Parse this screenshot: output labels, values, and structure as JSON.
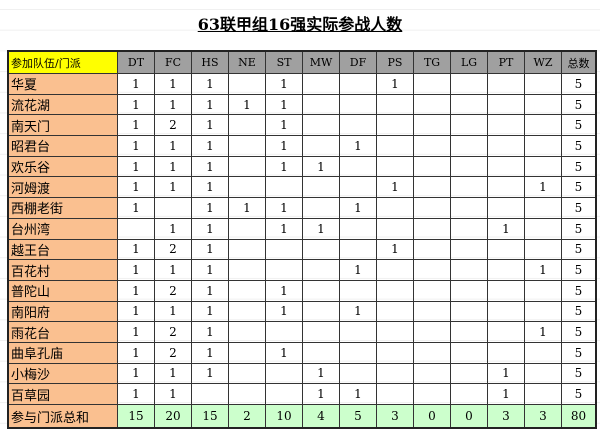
{
  "title": "63联甲组16强实际参战人数",
  "header": {
    "label": "参加队伍/门派",
    "columns": [
      "DT",
      "FC",
      "HS",
      "NE",
      "ST",
      "MW",
      "DF",
      "PS",
      "TG",
      "LG",
      "PT",
      "WZ"
    ],
    "total": "总数"
  },
  "rows": [
    {
      "name": "华夏",
      "values": [
        "1",
        "1",
        "1",
        "",
        "1",
        "",
        "",
        "1",
        "",
        "",
        "",
        ""
      ],
      "total": "5"
    },
    {
      "name": "流花湖",
      "values": [
        "1",
        "1",
        "1",
        "1",
        "1",
        "",
        "",
        "",
        "",
        "",
        "",
        ""
      ],
      "total": "5"
    },
    {
      "name": "南天门",
      "values": [
        "1",
        "2",
        "1",
        "",
        "1",
        "",
        "",
        "",
        "",
        "",
        "",
        ""
      ],
      "total": "5"
    },
    {
      "name": "昭君台",
      "values": [
        "1",
        "1",
        "1",
        "",
        "1",
        "",
        "1",
        "",
        "",
        "",
        "",
        ""
      ],
      "total": "5"
    },
    {
      "name": "欢乐谷",
      "values": [
        "1",
        "1",
        "1",
        "",
        "1",
        "1",
        "",
        "",
        "",
        "",
        "",
        ""
      ],
      "total": "5"
    },
    {
      "name": "河姆渡",
      "values": [
        "1",
        "1",
        "1",
        "",
        "",
        "",
        "",
        "1",
        "",
        "",
        "",
        "1"
      ],
      "total": "5"
    },
    {
      "name": "西棚老街",
      "values": [
        "1",
        "",
        "1",
        "1",
        "1",
        "",
        "1",
        "",
        "",
        "",
        "",
        ""
      ],
      "total": "5"
    },
    {
      "name": "台州湾",
      "values": [
        "",
        "1",
        "1",
        "",
        "1",
        "1",
        "",
        "",
        "",
        "",
        "1",
        ""
      ],
      "total": "5"
    },
    {
      "name": "越王台",
      "values": [
        "1",
        "2",
        "1",
        "",
        "",
        "",
        "",
        "1",
        "",
        "",
        "",
        ""
      ],
      "total": "5"
    },
    {
      "name": "百花村",
      "values": [
        "1",
        "1",
        "1",
        "",
        "",
        "",
        "1",
        "",
        "",
        "",
        "",
        "1"
      ],
      "total": "5"
    },
    {
      "name": "普陀山",
      "values": [
        "1",
        "2",
        "1",
        "",
        "1",
        "",
        "",
        "",
        "",
        "",
        "",
        ""
      ],
      "total": "5"
    },
    {
      "name": "南阳府",
      "values": [
        "1",
        "1",
        "1",
        "",
        "1",
        "",
        "1",
        "",
        "",
        "",
        "",
        ""
      ],
      "total": "5"
    },
    {
      "name": "雨花台",
      "values": [
        "1",
        "2",
        "1",
        "",
        "",
        "",
        "",
        "",
        "",
        "",
        "",
        "1"
      ],
      "total": "5"
    },
    {
      "name": "曲阜孔庙",
      "values": [
        "1",
        "2",
        "1",
        "",
        "1",
        "",
        "",
        "",
        "",
        "",
        "",
        ""
      ],
      "total": "5"
    },
    {
      "name": "小梅沙",
      "values": [
        "1",
        "1",
        "1",
        "",
        "",
        "1",
        "",
        "",
        "",
        "",
        "1",
        ""
      ],
      "total": "5"
    },
    {
      "name": "百草园",
      "values": [
        "1",
        "1",
        "",
        "",
        "",
        "1",
        "1",
        "",
        "",
        "",
        "1",
        ""
      ],
      "total": "5"
    }
  ],
  "sum": {
    "label": "参与门派总和",
    "values": [
      "15",
      "20",
      "15",
      "2",
      "10",
      "4",
      "5",
      "3",
      "0",
      "0",
      "3",
      "3"
    ],
    "total": "80"
  },
  "colors": {
    "header_label": "#ffff00",
    "header": "#a0a0a0",
    "row_label": "#fac090",
    "sum": "#ccffcc"
  }
}
